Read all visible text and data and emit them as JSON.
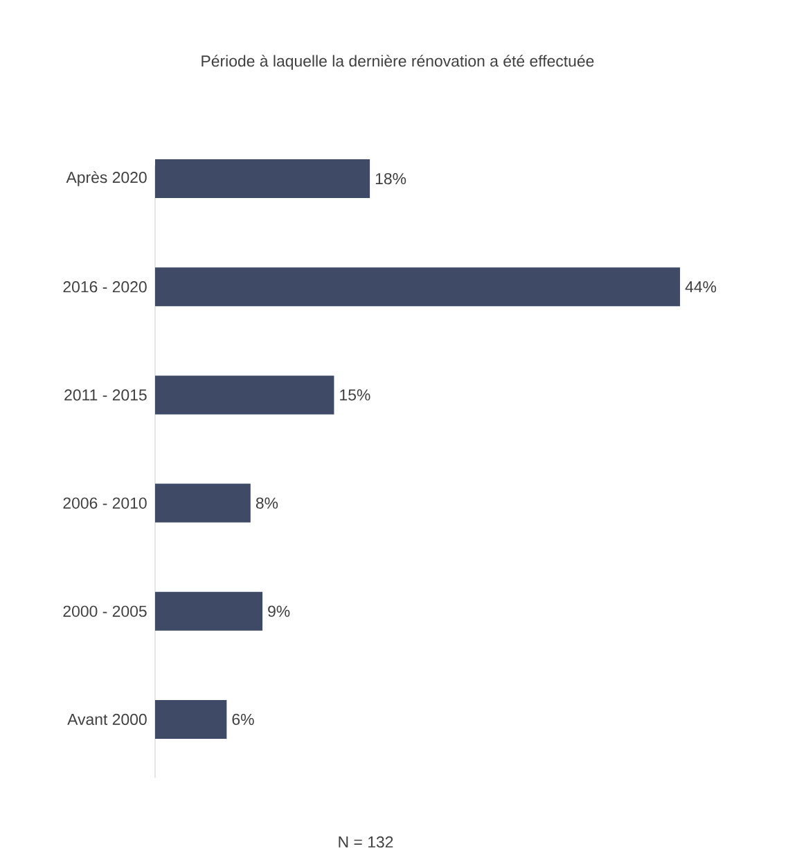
{
  "chart_data": {
    "type": "bar",
    "orientation": "horizontal",
    "title": "Période à laquelle la dernière rénovation a été effectuée",
    "categories": [
      "Après 2020",
      "2016 - 2020",
      "2011 - 2015",
      "2006 - 2010",
      "2000 - 2005",
      "Avant 2000"
    ],
    "values": [
      18,
      44,
      15,
      8,
      9,
      6
    ],
    "value_labels": [
      "18%",
      "44%",
      "15%",
      "8%",
      "9%",
      "6%"
    ],
    "color": "#3f4a67",
    "annotations": [
      "N = 132"
    ]
  }
}
